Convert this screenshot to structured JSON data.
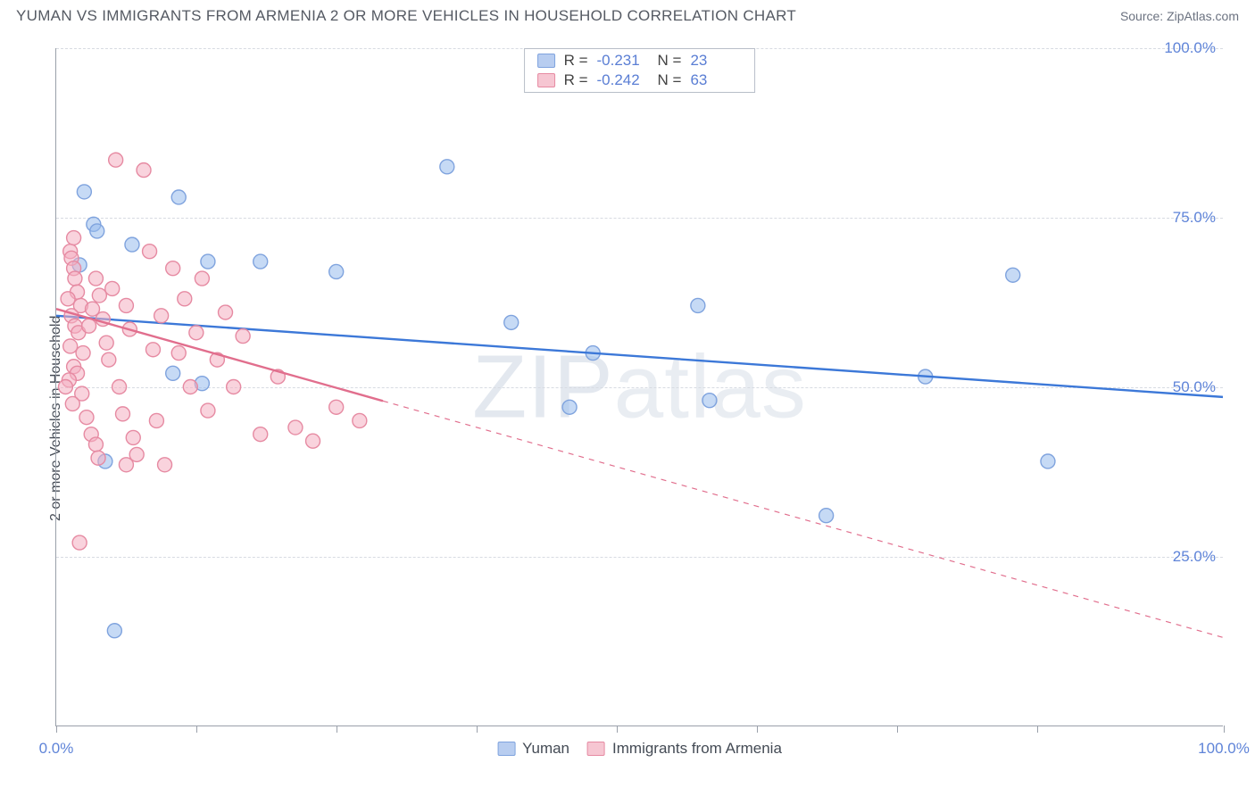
{
  "title": "YUMAN VS IMMIGRANTS FROM ARMENIA 2 OR MORE VEHICLES IN HOUSEHOLD CORRELATION CHART",
  "source": "Source: ZipAtlas.com",
  "watermark": "ZIPatlas",
  "chart": {
    "type": "scatter",
    "background_color": "#ffffff",
    "grid_color": "#d7dbe2",
    "axis_color": "#9aa0aa",
    "xlim": [
      0,
      100
    ],
    "ylim": [
      0,
      100
    ],
    "x_ticks": [
      0,
      12,
      24,
      36,
      48,
      60,
      72,
      84,
      100
    ],
    "x_tick_labels_shown": {
      "0": "0.0%",
      "100": "100.0%"
    },
    "y_gridlines": [
      25,
      50,
      75,
      100
    ],
    "y_tick_labels": {
      "25": "25.0%",
      "50": "50.0%",
      "75": "75.0%",
      "100": "100.0%"
    },
    "y_axis_title": "2 or more Vehicles in Household",
    "label_fontsize": 17,
    "tick_color": "#5f84d8",
    "marker_radius": 8,
    "marker_stroke_width": 1.4,
    "line_width": 2.4,
    "series": [
      {
        "name": "Yuman",
        "swatch_fill": "#b8cdf0",
        "swatch_stroke": "#7fa3de",
        "marker_fill": "rgba(152,188,236,0.55)",
        "marker_stroke": "#7fa3de",
        "trend_color": "#3c78d8",
        "trend_solid_xmax": 100,
        "R": "-0.231",
        "N": "23",
        "trend": {
          "x0": 0,
          "y0": 60.5,
          "x1": 100,
          "y1": 48.5
        },
        "points": [
          [
            2.4,
            78.8
          ],
          [
            3.2,
            74.0
          ],
          [
            3.5,
            73.0
          ],
          [
            6.5,
            71.0
          ],
          [
            10.5,
            78.0
          ],
          [
            13.0,
            68.5
          ],
          [
            17.5,
            68.5
          ],
          [
            24.0,
            67.0
          ],
          [
            10.0,
            52.0
          ],
          [
            12.5,
            50.5
          ],
          [
            4.2,
            39.0
          ],
          [
            5.0,
            14.0
          ],
          [
            33.5,
            82.5
          ],
          [
            39.0,
            59.5
          ],
          [
            46.0,
            55.0
          ],
          [
            55.0,
            62.0
          ],
          [
            56.0,
            48.0
          ],
          [
            66.0,
            31.0
          ],
          [
            74.5,
            51.5
          ],
          [
            82.0,
            66.5
          ],
          [
            85.0,
            39.0
          ],
          [
            44.0,
            47.0
          ],
          [
            2.0,
            68.0
          ]
        ]
      },
      {
        "name": "Immigrants from Armenia",
        "swatch_fill": "#f6c6d2",
        "swatch_stroke": "#e68aa2",
        "marker_fill": "rgba(244,174,193,0.55)",
        "marker_stroke": "#e68aa2",
        "trend_color": "#e16e8d",
        "trend_solid_xmax": 28,
        "R": "-0.242",
        "N": "63",
        "trend": {
          "x0": 0,
          "y0": 61.5,
          "x1": 100,
          "y1": 13.0
        },
        "points": [
          [
            1.2,
            70.0
          ],
          [
            1.3,
            69.0
          ],
          [
            1.5,
            67.5
          ],
          [
            1.6,
            66.0
          ],
          [
            1.8,
            64.0
          ],
          [
            1.0,
            63.0
          ],
          [
            2.1,
            62.0
          ],
          [
            1.3,
            60.5
          ],
          [
            1.6,
            59.0
          ],
          [
            1.9,
            58.0
          ],
          [
            1.2,
            56.0
          ],
          [
            2.3,
            55.0
          ],
          [
            1.5,
            53.0
          ],
          [
            1.8,
            52.0
          ],
          [
            1.1,
            51.0
          ],
          [
            0.8,
            50.0
          ],
          [
            2.2,
            49.0
          ],
          [
            1.4,
            47.5
          ],
          [
            2.6,
            45.5
          ],
          [
            3.0,
            43.0
          ],
          [
            3.4,
            41.5
          ],
          [
            3.6,
            39.5
          ],
          [
            2.8,
            59.0
          ],
          [
            3.1,
            61.5
          ],
          [
            3.4,
            66.0
          ],
          [
            3.7,
            63.5
          ],
          [
            4.0,
            60.0
          ],
          [
            4.3,
            56.5
          ],
          [
            4.5,
            54.0
          ],
          [
            4.8,
            64.5
          ],
          [
            5.1,
            83.5
          ],
          [
            5.4,
            50.0
          ],
          [
            5.7,
            46.0
          ],
          [
            6.0,
            62.0
          ],
          [
            6.3,
            58.5
          ],
          [
            6.6,
            42.5
          ],
          [
            6.9,
            40.0
          ],
          [
            7.5,
            82.0
          ],
          [
            8.0,
            70.0
          ],
          [
            8.3,
            55.5
          ],
          [
            8.6,
            45.0
          ],
          [
            9.0,
            60.5
          ],
          [
            9.3,
            38.5
          ],
          [
            6.0,
            38.5
          ],
          [
            10.0,
            67.5
          ],
          [
            10.5,
            55.0
          ],
          [
            11.0,
            63.0
          ],
          [
            11.5,
            50.0
          ],
          [
            12.0,
            58.0
          ],
          [
            12.5,
            66.0
          ],
          [
            13.0,
            46.5
          ],
          [
            13.8,
            54.0
          ],
          [
            14.5,
            61.0
          ],
          [
            15.2,
            50.0
          ],
          [
            16.0,
            57.5
          ],
          [
            17.5,
            43.0
          ],
          [
            19.0,
            51.5
          ],
          [
            20.5,
            44.0
          ],
          [
            22.0,
            42.0
          ],
          [
            24.0,
            47.0
          ],
          [
            26.0,
            45.0
          ],
          [
            2.0,
            27.0
          ],
          [
            1.5,
            72.0
          ]
        ]
      }
    ],
    "legend_bottom": [
      {
        "label": "Yuman",
        "fill": "#b8cdf0",
        "stroke": "#7fa3de"
      },
      {
        "label": "Immigrants from Armenia",
        "fill": "#f6c6d2",
        "stroke": "#e68aa2"
      }
    ]
  }
}
